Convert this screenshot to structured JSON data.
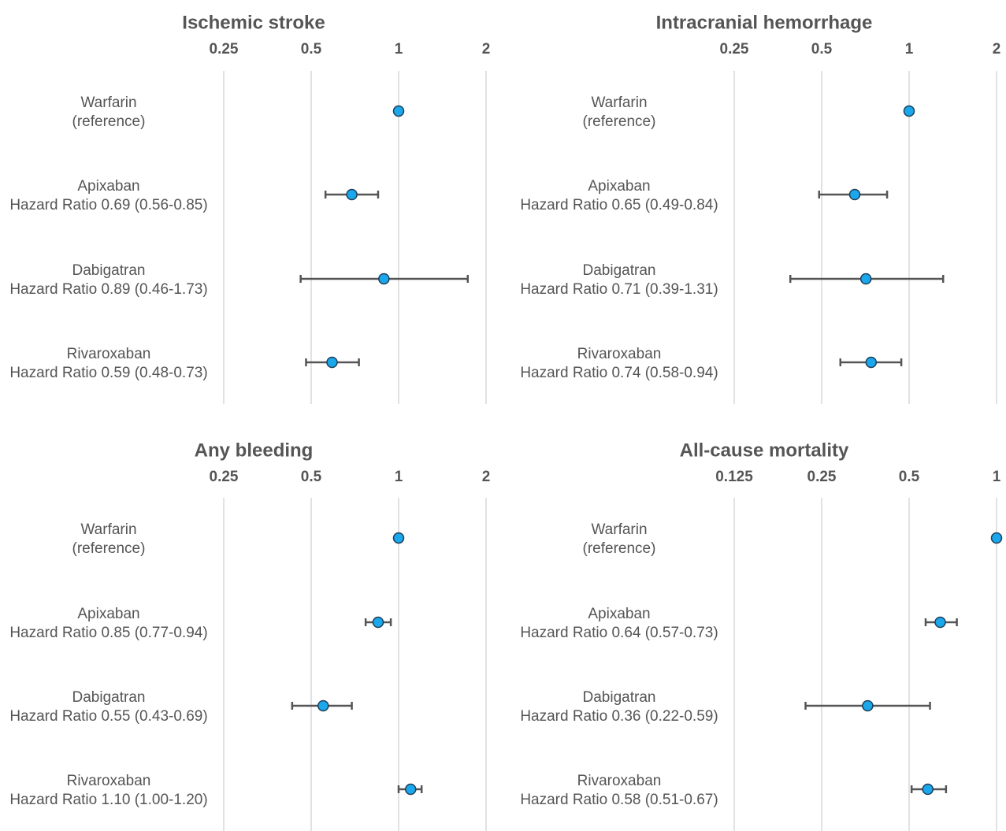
{
  "chart_data": [
    {
      "type": "scatter",
      "title": "Ischemic stroke",
      "x_scale": "log2",
      "xlim": [
        0.25,
        2
      ],
      "ticks": [
        "0.25",
        "0.5",
        "1",
        "2"
      ],
      "rows": [
        {
          "line1": "Warfarin",
          "line2": "(reference)",
          "hr": 1,
          "lo": null,
          "hi": null
        },
        {
          "line1": "Apixaban",
          "line2": "Hazard Ratio 0.69 (0.56-0.85)",
          "hr": 0.69,
          "lo": 0.56,
          "hi": 0.85
        },
        {
          "line1": "Dabigatran",
          "line2": "Hazard Ratio 0.89 (0.46-1.73)",
          "hr": 0.89,
          "lo": 0.46,
          "hi": 1.73
        },
        {
          "line1": "Rivaroxaban",
          "line2": "Hazard Ratio 0.59 (0.48-0.73)",
          "hr": 0.59,
          "lo": 0.48,
          "hi": 0.73
        }
      ]
    },
    {
      "type": "scatter",
      "title": "Intracranial hemorrhage",
      "x_scale": "log2",
      "xlim": [
        0.25,
        2
      ],
      "ticks": [
        "0.25",
        "0.5",
        "1",
        "2"
      ],
      "rows": [
        {
          "line1": "Warfarin",
          "line2": "(reference)",
          "hr": 1,
          "lo": null,
          "hi": null
        },
        {
          "line1": "Apixaban",
          "line2": "Hazard Ratio 0.65 (0.49-0.84)",
          "hr": 0.65,
          "lo": 0.49,
          "hi": 0.84
        },
        {
          "line1": "Dabigatran",
          "line2": "Hazard Ratio 0.71 (0.39-1.31)",
          "hr": 0.71,
          "lo": 0.39,
          "hi": 1.31
        },
        {
          "line1": "Rivaroxaban",
          "line2": "Hazard Ratio 0.74 (0.58-0.94)",
          "hr": 0.74,
          "lo": 0.58,
          "hi": 0.94
        }
      ]
    },
    {
      "type": "scatter",
      "title": "Any bleeding",
      "x_scale": "log2",
      "xlim": [
        0.25,
        2
      ],
      "ticks": [
        "0.25",
        "0.5",
        "1",
        "2"
      ],
      "rows": [
        {
          "line1": "Warfarin",
          "line2": "(reference)",
          "hr": 1,
          "lo": null,
          "hi": null
        },
        {
          "line1": "Apixaban",
          "line2": "Hazard Ratio 0.85 (0.77-0.94)",
          "hr": 0.85,
          "lo": 0.77,
          "hi": 0.94
        },
        {
          "line1": "Dabigatran",
          "line2": "Hazard Ratio 0.55 (0.43-0.69)",
          "hr": 0.55,
          "lo": 0.43,
          "hi": 0.69
        },
        {
          "line1": "Rivaroxaban",
          "line2": "Hazard Ratio 1.10 (1.00-1.20)",
          "hr": 1.1,
          "lo": 1.0,
          "hi": 1.2
        }
      ]
    },
    {
      "type": "scatter",
      "title": "All-cause mortality",
      "x_scale": "log2",
      "xlim": [
        0.125,
        1
      ],
      "ticks": [
        "0.125",
        "0.25",
        "0.5",
        "1"
      ],
      "rows": [
        {
          "line1": "Warfarin",
          "line2": "(reference)",
          "hr": 1,
          "lo": null,
          "hi": null
        },
        {
          "line1": "Apixaban",
          "line2": "Hazard Ratio 0.64 (0.57-0.73)",
          "hr": 0.64,
          "lo": 0.57,
          "hi": 0.73
        },
        {
          "line1": "Dabigatran",
          "line2": "Hazard Ratio 0.36 (0.22-0.59)",
          "hr": 0.36,
          "lo": 0.22,
          "hi": 0.59
        },
        {
          "line1": "Rivaroxaban",
          "line2": "Hazard Ratio 0.58 (0.51-0.67)",
          "hr": 0.58,
          "lo": 0.51,
          "hi": 0.67
        }
      ]
    }
  ],
  "colors": {
    "point_fill": "#1aa7ec",
    "point_stroke": "#1f3e57",
    "error_bar": "#555555",
    "gridline": "#d9d9d9",
    "text": "#555555"
  }
}
